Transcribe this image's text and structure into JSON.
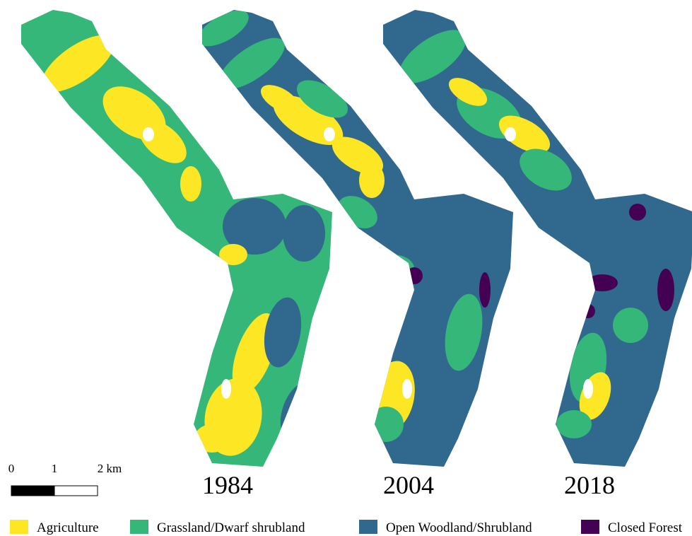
{
  "maps": [
    {
      "year": "1984"
    },
    {
      "year": "2004"
    },
    {
      "year": "2018"
    }
  ],
  "scale_bar": {
    "labels": [
      "0",
      "1",
      "2 km"
    ]
  },
  "legend": {
    "items": [
      {
        "label": "Agriculture",
        "color": "#fde725"
      },
      {
        "label": "Grassland/Dwarf shrubland",
        "color": "#35b779"
      },
      {
        "label": "Open Woodland/Shrubland",
        "color": "#31688e"
      },
      {
        "label": "Closed Forest",
        "color": "#440154"
      }
    ]
  }
}
